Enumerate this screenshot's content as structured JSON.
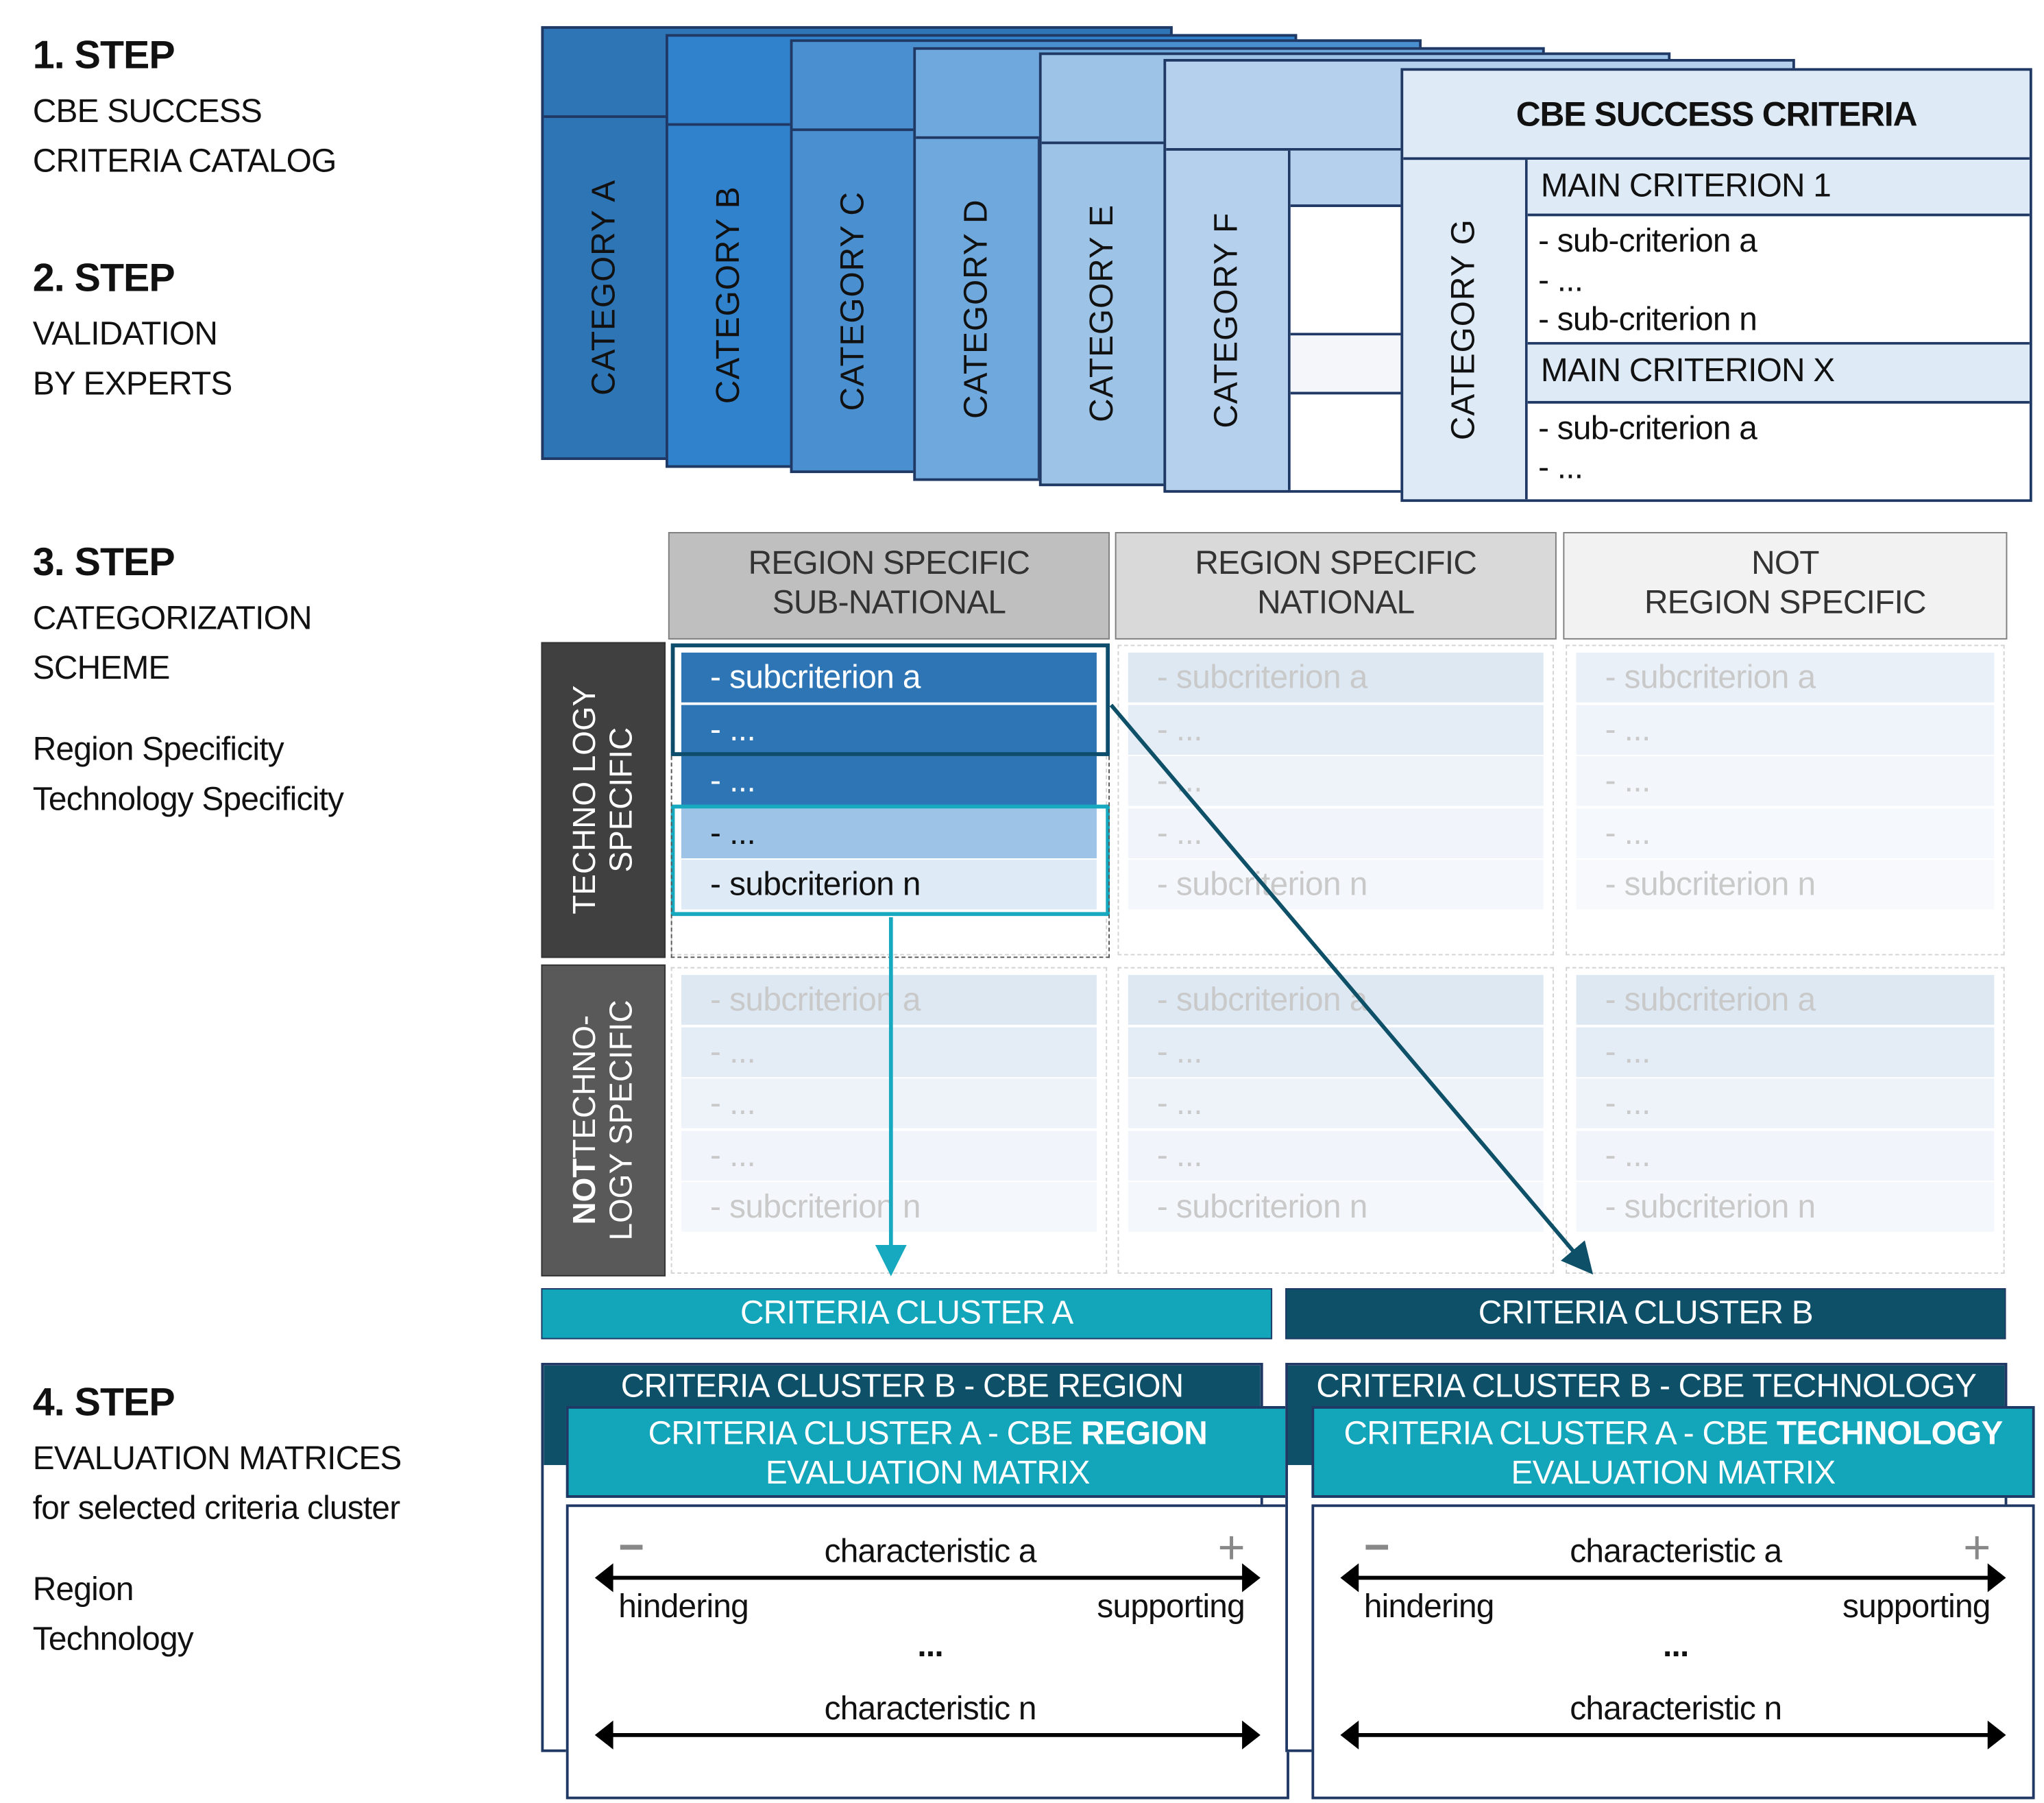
{
  "steps": [
    {
      "title": "1. STEP",
      "lines": [
        "CBE SUCCESS",
        "CRITERIA CATALOG"
      ]
    },
    {
      "title": "2. STEP",
      "lines": [
        "VALIDATION",
        "BY EXPERTS"
      ]
    },
    {
      "title": "3. STEP",
      "lines": [
        "CATEGORIZATION",
        "SCHEME"
      ],
      "extra": [
        "Region Specificity",
        "Technology Specificity"
      ]
    },
    {
      "title": "4. STEP",
      "lines": [
        "EVALUATION MATRICES",
        "for selected criteria cluster"
      ],
      "extra": [
        "Region",
        "Technology"
      ]
    }
  ],
  "catalog": {
    "card_title": "CBE SUCCESS CRITERIA",
    "cards": [
      {
        "category": "CATEGORY A",
        "color": "#2e75b6"
      },
      {
        "category": "CATEGORY B",
        "color": "#3182cc"
      },
      {
        "category": "CATEGORY C",
        "color": "#4a90d0"
      },
      {
        "category": "CATEGORY D",
        "color": "#6fa8dc"
      },
      {
        "category": "CATEGORY E",
        "color": "#9dc3e6"
      },
      {
        "category": "CATEGORY F",
        "color": "#b4d0ec"
      },
      {
        "category": "CATEGORY G",
        "color": "#deebf7"
      }
    ],
    "main1": "MAIN CRITERION 1",
    "main1_subs": [
      "- sub-criterion a",
      "- ...",
      "- sub-criterion n"
    ],
    "mainX": "MAIN CRITERION X",
    "mainX_subs": [
      "- sub-criterion a",
      "- ..."
    ]
  },
  "scheme": {
    "columns": [
      {
        "line1": "REGION SPECIFIC",
        "line2": "SUB-NATIONAL",
        "color": "#bfbfbf"
      },
      {
        "line1": "REGION SPECIFIC",
        "line2": "NATIONAL",
        "color": "#d9d9d9"
      },
      {
        "line1": "NOT",
        "line2": "REGION SPECIFIC",
        "color": "#f2f2f2"
      }
    ],
    "rows": [
      {
        "line1": "TECHNO LOGY",
        "line2": "SPECIFIC",
        "color": "#404040"
      },
      {
        "bold": "NOT",
        "line1": "TECHNO-",
        "line2": "LOGY SPECIFIC",
        "color": "#595959"
      }
    ],
    "cell_items": [
      "- subcriterion a",
      "- ...",
      "- ...",
      "- ...",
      "- subcriterion n"
    ],
    "colors": {
      "selected_dark": "#2e75b6",
      "selected_light": "#9dc3e6",
      "cluster_a": "#13a5b9",
      "cluster_b": "#0e5068"
    }
  },
  "clusters": {
    "a": "CRITERIA CLUSTER A",
    "b": "CRITERIA CLUSTER B"
  },
  "matrices": [
    {
      "back_title": "CRITERIA CLUSTER B - CBE REGION",
      "front_title_prefix": "CRITERIA CLUSTER A - CBE ",
      "front_title_bold": "REGION",
      "front_subtitle": "EVALUATION MATRIX"
    },
    {
      "back_title": "CRITERIA CLUSTER B - CBE TECHNOLOGY",
      "front_title_prefix": "CRITERIA CLUSTER A - CBE ",
      "front_title_bold": "TECHNOLOGY",
      "front_subtitle": "EVALUATION MATRIX"
    }
  ],
  "matrix_content": {
    "minus": "−",
    "plus": "+",
    "characteristic_a": "characteristic a",
    "left_pole": "hindering",
    "right_pole": "supporting",
    "ellipsis": "...",
    "characteristic_n": "characteristic n"
  }
}
